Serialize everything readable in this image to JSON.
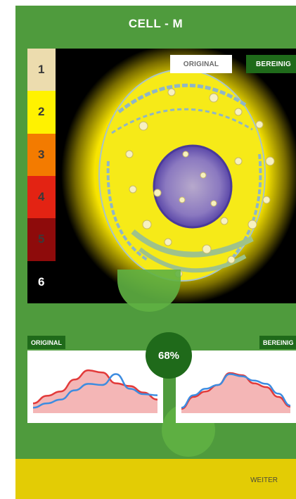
{
  "header": {
    "title": "CELL - M"
  },
  "scale": {
    "items": [
      {
        "label": "1",
        "color": "#ecdcae",
        "text_color": "#3a3a3a"
      },
      {
        "label": "2",
        "color": "#fff200",
        "text_color": "#3a3a3a"
      },
      {
        "label": "3",
        "color": "#f37b00",
        "text_color": "#3a3a3a"
      },
      {
        "label": "4",
        "color": "#e32313",
        "text_color": "#3a3a3a"
      },
      {
        "label": "5",
        "color": "#8e0b0b",
        "text_color": "#3a3a3a"
      },
      {
        "label": "6",
        "color": "#000000",
        "text_color": "#ffffff"
      }
    ]
  },
  "view_toggle": {
    "original_label": "ORIGINAL",
    "clean_label": "BEREINIG",
    "selected": "original"
  },
  "progress": {
    "value": 0.68,
    "label": "68%"
  },
  "charts": [
    {
      "tag": "ORIGINAL",
      "series": [
        {
          "color": "#e23a3a",
          "fill": "#f4b6b6",
          "values": [
            18,
            32,
            40,
            62,
            79,
            75,
            55,
            50,
            38,
            25
          ]
        },
        {
          "color": "#3d8ce0",
          "values": [
            10,
            18,
            25,
            42,
            54,
            52,
            72,
            45,
            35,
            33
          ]
        }
      ]
    },
    {
      "tag": "BEREINIG",
      "series": [
        {
          "color": "#e23a3a",
          "fill": "#f4b6b6",
          "values": [
            8,
            30,
            40,
            52,
            74,
            70,
            55,
            48,
            30,
            12
          ]
        },
        {
          "color": "#3d8ce0",
          "values": [
            10,
            33,
            45,
            52,
            72,
            68,
            60,
            54,
            36,
            14
          ]
        }
      ]
    }
  ],
  "footer": {
    "next_label": "WEITER"
  },
  "colors": {
    "primary_green": "#4f9b3d",
    "dark_green": "#1f6a1a",
    "accent_yellow": "#e3cc05"
  }
}
